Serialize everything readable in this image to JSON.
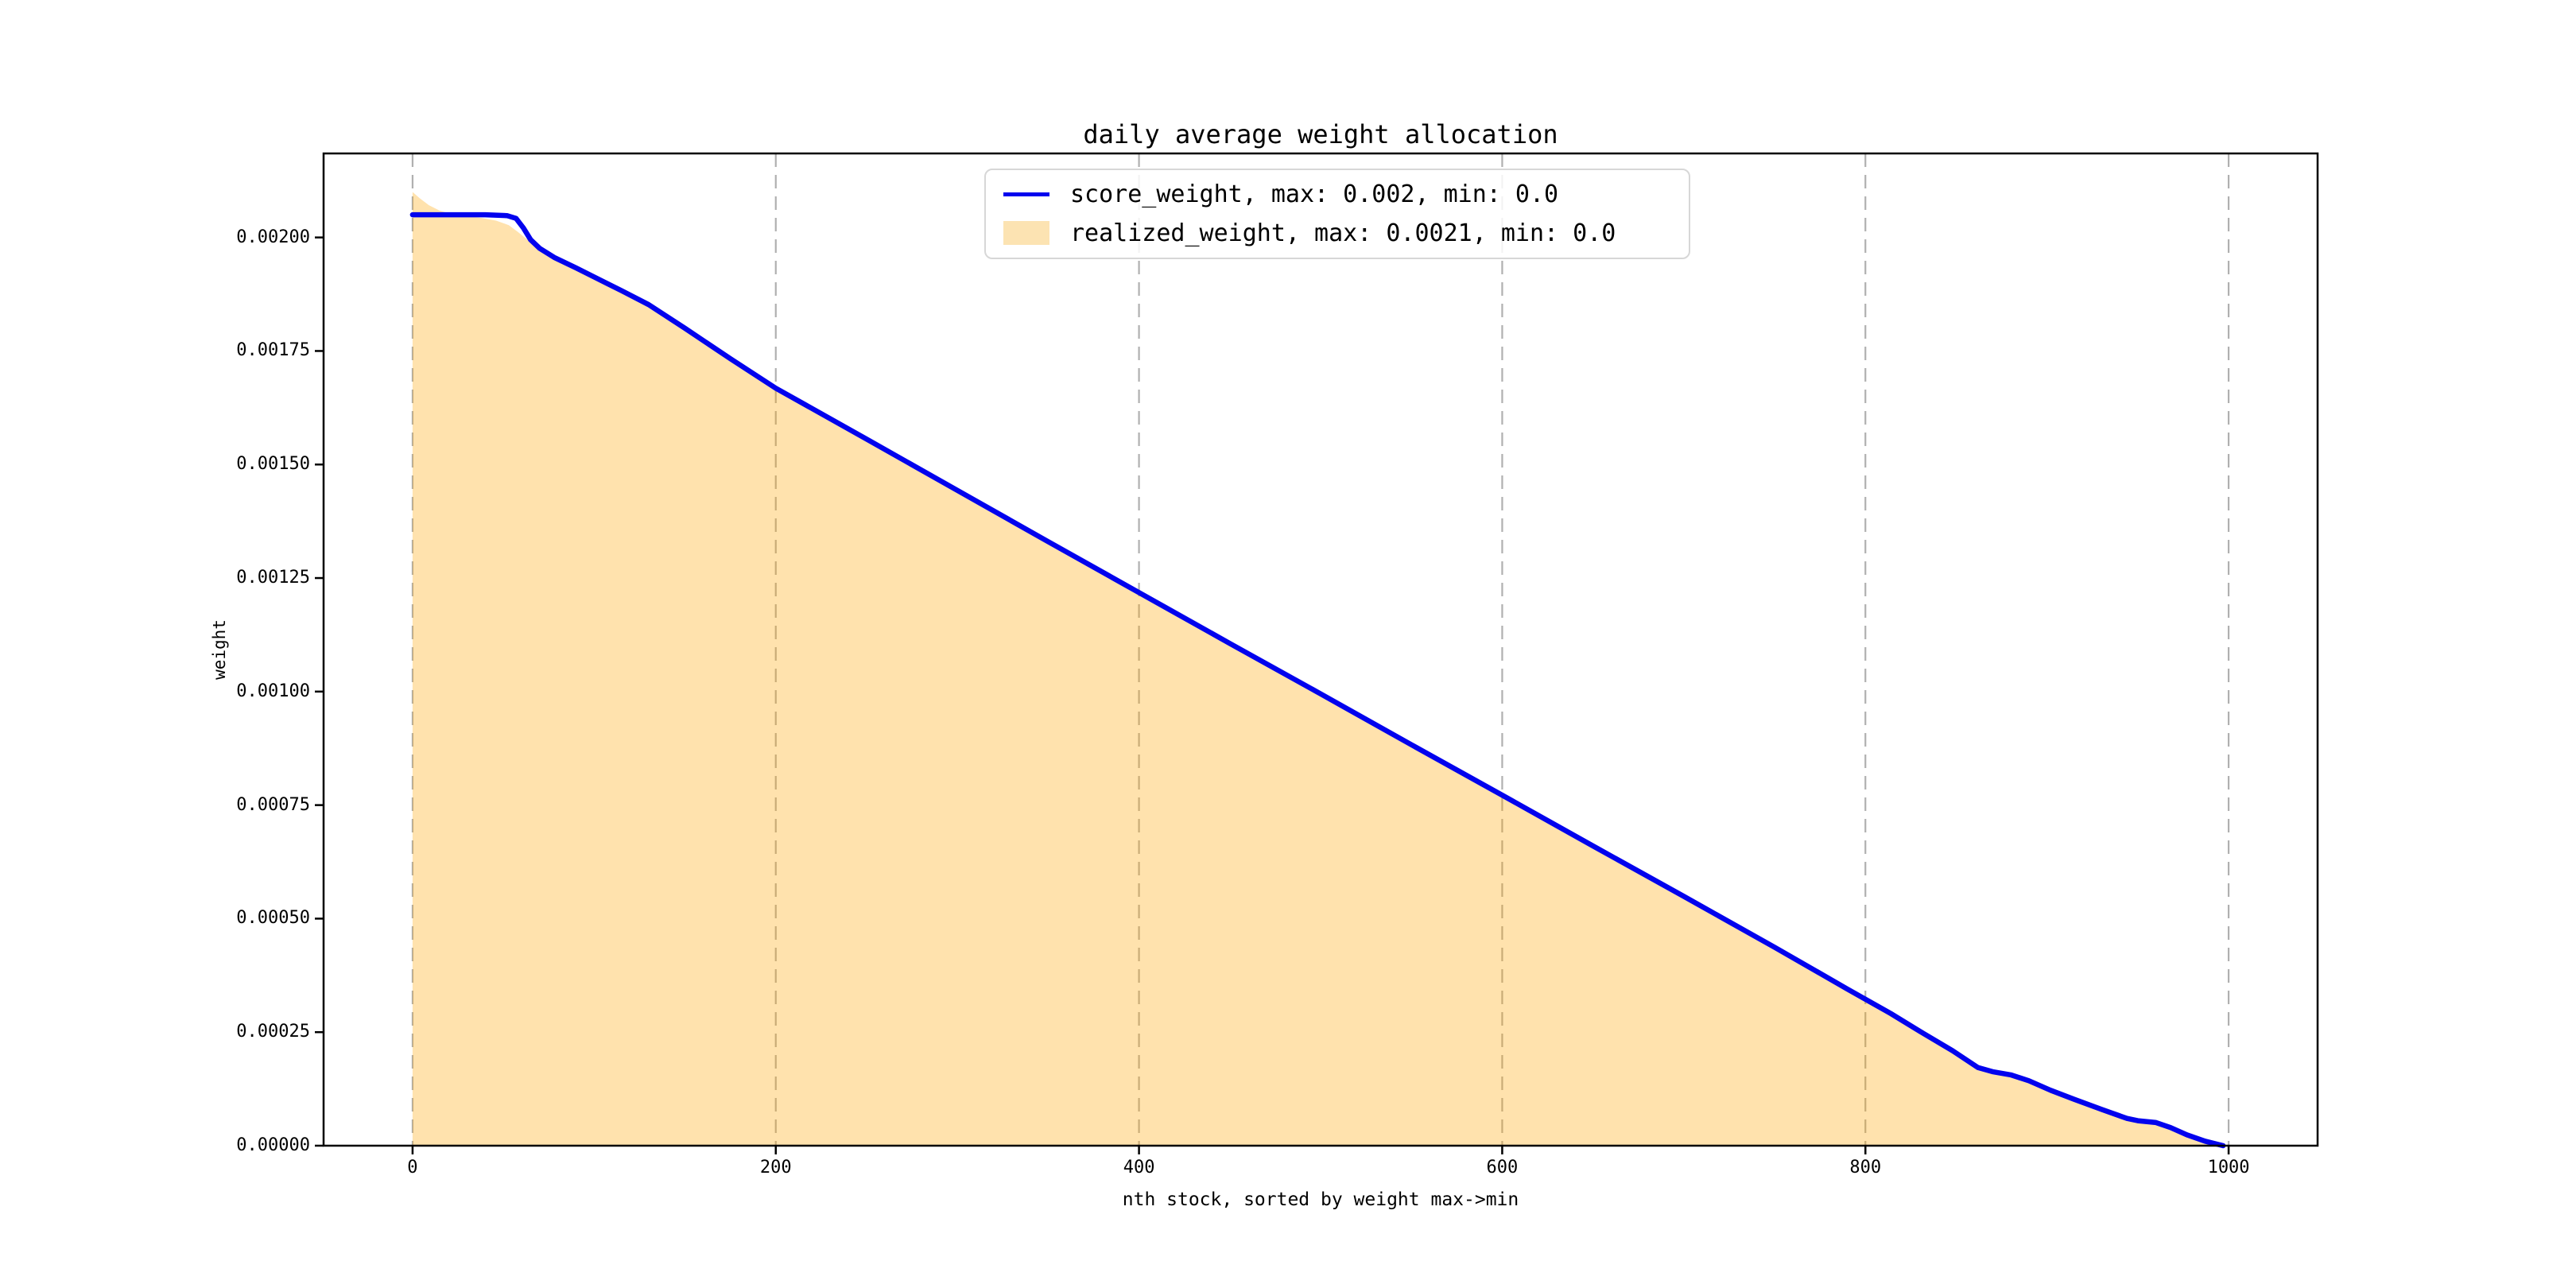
{
  "figure": {
    "title": "daily average weight allocation"
  },
  "legend": {
    "items": [
      {
        "label": "score_weight, max: 0.002, min: 0.0",
        "type": "line",
        "color": "#0202ee"
      },
      {
        "label": "realized_weight, max: 0.0021, min: 0.0",
        "type": "fill",
        "color": "#fce3b2"
      }
    ]
  },
  "chart_data": {
    "type": "area",
    "title": "daily average weight allocation",
    "xlabel": "nth stock, sorted by weight max->min",
    "ylabel": "weight",
    "xlim": [
      -49,
      1049
    ],
    "ylim": [
      0,
      0.002185
    ],
    "x_ticks": [
      0,
      200,
      400,
      600,
      800,
      1000
    ],
    "x_tick_labels": [
      "0",
      "200",
      "400",
      "600",
      "800",
      "1000"
    ],
    "y_ticks": [
      0.0,
      0.00025,
      0.0005,
      0.00075,
      0.001,
      0.00125,
      0.0015,
      0.00175,
      0.002
    ],
    "y_tick_labels": [
      "0.00000",
      "0.00025",
      "0.00050",
      "0.00075",
      "0.00100",
      "0.00125",
      "0.00150",
      "0.00175",
      "0.00200"
    ],
    "grid": "vertical-dashed",
    "grid_color": "#b0b0b0",
    "legend_position": "upper center",
    "series": [
      {
        "name": "score_weight",
        "type": "line",
        "color": "#0202ee",
        "max": 0.002,
        "min": 0.0,
        "points": [
          [
            0,
            0.00205
          ],
          [
            40,
            0.00205
          ],
          [
            52,
            0.002048
          ],
          [
            57,
            0.002042
          ],
          [
            61,
            0.002021
          ],
          [
            65,
            0.001995
          ],
          [
            70,
            0.001976
          ],
          [
            78,
            0.001956
          ],
          [
            90,
            0.001933
          ],
          [
            100,
            0.001913
          ],
          [
            115,
            0.001883
          ],
          [
            130,
            0.001852
          ],
          [
            150,
            0.0018
          ],
          [
            175,
            0.001733
          ],
          [
            200,
            0.001668
          ],
          [
            250,
            0.001556
          ],
          [
            300,
            0.001443
          ],
          [
            350,
            0.00133
          ],
          [
            400,
            0.001218
          ],
          [
            450,
            0.001106
          ],
          [
            500,
            0.000995
          ],
          [
            550,
            0.000883
          ],
          [
            600,
            0.000772
          ],
          [
            650,
            0.00066
          ],
          [
            700,
            0.000549
          ],
          [
            750,
            0.000437
          ],
          [
            790,
            0.000345
          ],
          [
            814,
            0.000291
          ],
          [
            832,
            0.000247
          ],
          [
            848,
            0.000209
          ],
          [
            862,
            0.000172
          ],
          [
            870,
            0.000163
          ],
          [
            880,
            0.000156
          ],
          [
            890,
            0.000143
          ],
          [
            902,
            0.000122
          ],
          [
            915,
            0.000102
          ],
          [
            930,
            8e-05
          ],
          [
            944,
            6e-05
          ],
          [
            950,
            5.5e-05
          ],
          [
            960,
            5.1e-05
          ],
          [
            968,
            4e-05
          ],
          [
            977,
            2.4e-05
          ],
          [
            987,
            1e-05
          ],
          [
            997,
            0
          ]
        ]
      },
      {
        "name": "realized_weight",
        "type": "area",
        "color": "rgba(255,165,0,0.32)",
        "max": 0.0021,
        "min": 0.0,
        "points": [
          [
            0,
            0.0021
          ],
          [
            4,
            0.002086
          ],
          [
            9,
            0.002071
          ],
          [
            15,
            0.002059
          ],
          [
            22,
            0.002051
          ],
          [
            30,
            0.002047
          ],
          [
            38,
            0.002043
          ],
          [
            46,
            0.002037
          ],
          [
            53,
            0.002027
          ],
          [
            58,
            0.002012
          ],
          [
            63,
            0.001996
          ],
          [
            68,
            0.00198
          ],
          [
            78,
            0.001953
          ],
          [
            90,
            0.00193
          ],
          [
            100,
            0.00191
          ],
          [
            115,
            0.001881
          ],
          [
            130,
            0.00185
          ],
          [
            150,
            0.001798
          ],
          [
            175,
            0.001731
          ],
          [
            200,
            0.001666
          ],
          [
            250,
            0.001554
          ],
          [
            300,
            0.001441
          ],
          [
            350,
            0.001328
          ],
          [
            400,
            0.001216
          ],
          [
            450,
            0.001104
          ],
          [
            500,
            0.000993
          ],
          [
            550,
            0.000881
          ],
          [
            600,
            0.00077
          ],
          [
            650,
            0.000658
          ],
          [
            700,
            0.000547
          ],
          [
            750,
            0.000435
          ],
          [
            790,
            0.000343
          ],
          [
            814,
            0.000289
          ],
          [
            832,
            0.000245
          ],
          [
            848,
            0.000207
          ],
          [
            862,
            0.00017
          ],
          [
            870,
            0.000161
          ],
          [
            880,
            0.000154
          ],
          [
            890,
            0.000141
          ],
          [
            902,
            0.00012
          ],
          [
            915,
            0.0001
          ],
          [
            930,
            7.8e-05
          ],
          [
            944,
            5.8e-05
          ],
          [
            950,
            5.3e-05
          ],
          [
            960,
            4.9e-05
          ],
          [
            968,
            3.8e-05
          ],
          [
            977,
            2.2e-05
          ],
          [
            987,
            8e-06
          ],
          [
            997,
            0
          ]
        ]
      }
    ]
  }
}
